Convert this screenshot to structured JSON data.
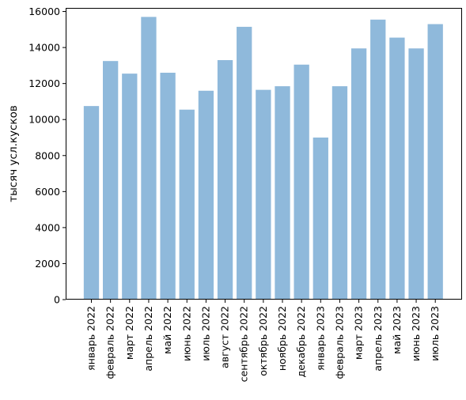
{
  "chart_data": {
    "type": "bar",
    "title": "",
    "xlabel": "",
    "ylabel": "тысяч усл.кусков",
    "ylim": [
      0,
      16200
    ],
    "yticks": [
      0,
      2000,
      4000,
      6000,
      8000,
      10000,
      12000,
      14000,
      16000
    ],
    "grid": false,
    "bar_color": "#8fb9db",
    "categories": [
      "январь 2022",
      "февраль 2022",
      "март 2022",
      "апрель 2022",
      "май 2022",
      "июнь 2022",
      "июль 2022",
      "август 2022",
      "сентябрь 2022",
      "октябрь 2022",
      "ноябрь 2022",
      "декабрь 2022",
      "январь 2023",
      "февраль 2023",
      "март 2023",
      "апрель 2023",
      "май 2023",
      "июнь 2023",
      "июль 2023"
    ],
    "values": [
      10750,
      13250,
      12550,
      15700,
      12600,
      10550,
      11600,
      13300,
      15150,
      11650,
      11850,
      13050,
      9000,
      11850,
      13950,
      15550,
      14550,
      13950,
      15300
    ]
  }
}
